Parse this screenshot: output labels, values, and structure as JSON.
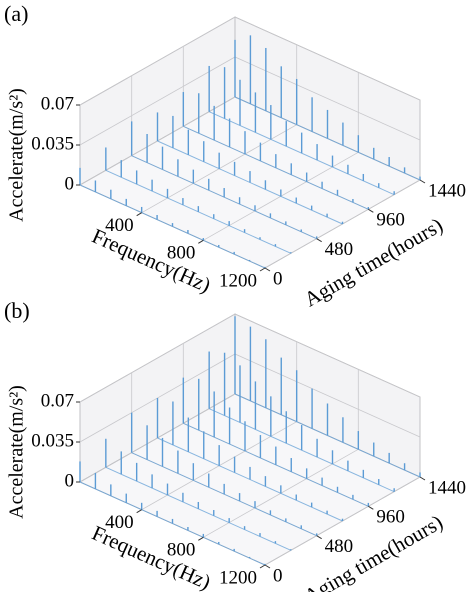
{
  "chart_data": [
    {
      "type": "waterfall3d",
      "title": "(a)",
      "x_label": "Frequency(Hz)",
      "y_label": "Aging time(hours)",
      "z_label": "Accelerate(m/s²)",
      "xlim": [
        0,
        1200
      ],
      "xticks": [
        400,
        800,
        1200
      ],
      "ylim": [
        0,
        1440
      ],
      "yticks": [
        0,
        480,
        960,
        1440
      ],
      "zlim": [
        0,
        0.07
      ],
      "zticks": [
        0,
        0.035,
        0.07
      ],
      "grid": true,
      "color": "#5b9bd5",
      "x": [
        0,
        100,
        200,
        300,
        400,
        500,
        600,
        700,
        800,
        900,
        1000,
        1100,
        1200
      ],
      "series": [
        {
          "y": 1440,
          "values": [
            0.05,
            0.06,
            0.055,
            0.045,
            0.04,
            0.03,
            0.025,
            0.02,
            0.015,
            0.01,
            0.008,
            0.005,
            0.003
          ]
        },
        {
          "y": 1200,
          "values": [
            0.04,
            0.045,
            0.04,
            0.035,
            0.03,
            0.022,
            0.018,
            0.014,
            0.01,
            0.008,
            0.006,
            0.004,
            0.003
          ]
        },
        {
          "y": 960,
          "values": [
            0.03,
            0.035,
            0.03,
            0.025,
            0.02,
            0.016,
            0.012,
            0.01,
            0.008,
            0.006,
            0.005,
            0.003,
            0.002
          ]
        },
        {
          "y": 720,
          "values": [
            0.025,
            0.028,
            0.022,
            0.018,
            0.014,
            0.012,
            0.01,
            0.008,
            0.006,
            0.005,
            0.004,
            0.003,
            0.002
          ]
        },
        {
          "y": 480,
          "values": [
            0.03,
            0.025,
            0.02,
            0.015,
            0.012,
            0.01,
            0.008,
            0.006,
            0.005,
            0.004,
            0.003,
            0.002,
            0.002
          ]
        },
        {
          "y": 240,
          "values": [
            0.02,
            0.015,
            0.012,
            0.01,
            0.008,
            0.006,
            0.005,
            0.004,
            0.004,
            0.003,
            0.002,
            0.002,
            0.001
          ]
        },
        {
          "y": 0,
          "values": [
            0.015,
            0.01,
            0.008,
            0.006,
            0.005,
            0.004,
            0.003,
            0.003,
            0.002,
            0.002,
            0.002,
            0.001,
            0.001
          ]
        }
      ]
    },
    {
      "type": "waterfall3d",
      "title": "(b)",
      "x_label": "Frequency(Hz)",
      "y_label": "Aging time(hours)",
      "z_label": "Accelerate(m/s²)",
      "xlim": [
        0,
        1200
      ],
      "xticks": [
        400,
        800,
        1200
      ],
      "ylim": [
        0,
        1440
      ],
      "yticks": [
        0,
        480,
        960,
        1440
      ],
      "zlim": [
        0,
        0.07
      ],
      "zticks": [
        0,
        0.035,
        0.07
      ],
      "grid": true,
      "color": "#5b9bd5",
      "x": [
        0,
        100,
        200,
        300,
        400,
        500,
        600,
        700,
        800,
        900,
        1000,
        1100,
        1200
      ],
      "series": [
        {
          "y": 1440,
          "values": [
            0.068,
            0.065,
            0.06,
            0.05,
            0.045,
            0.035,
            0.028,
            0.022,
            0.016,
            0.012,
            0.009,
            0.006,
            0.004
          ]
        },
        {
          "y": 1200,
          "values": [
            0.05,
            0.055,
            0.05,
            0.042,
            0.035,
            0.028,
            0.022,
            0.016,
            0.012,
            0.009,
            0.007,
            0.005,
            0.003
          ]
        },
        {
          "y": 960,
          "values": [
            0.04,
            0.045,
            0.04,
            0.032,
            0.026,
            0.02,
            0.016,
            0.012,
            0.009,
            0.007,
            0.005,
            0.004,
            0.003
          ]
        },
        {
          "y": 720,
          "values": [
            0.035,
            0.038,
            0.03,
            0.024,
            0.018,
            0.014,
            0.011,
            0.009,
            0.007,
            0.005,
            0.004,
            0.003,
            0.002
          ]
        },
        {
          "y": 480,
          "values": [
            0.035,
            0.03,
            0.025,
            0.02,
            0.015,
            0.012,
            0.009,
            0.007,
            0.006,
            0.004,
            0.003,
            0.003,
            0.002
          ]
        },
        {
          "y": 240,
          "values": [
            0.025,
            0.02,
            0.016,
            0.012,
            0.01,
            0.008,
            0.006,
            0.005,
            0.004,
            0.003,
            0.003,
            0.002,
            0.001
          ]
        },
        {
          "y": 0,
          "values": [
            0.018,
            0.014,
            0.01,
            0.008,
            0.006,
            0.005,
            0.004,
            0.003,
            0.003,
            0.002,
            0.002,
            0.001,
            0.001
          ]
        }
      ]
    }
  ]
}
